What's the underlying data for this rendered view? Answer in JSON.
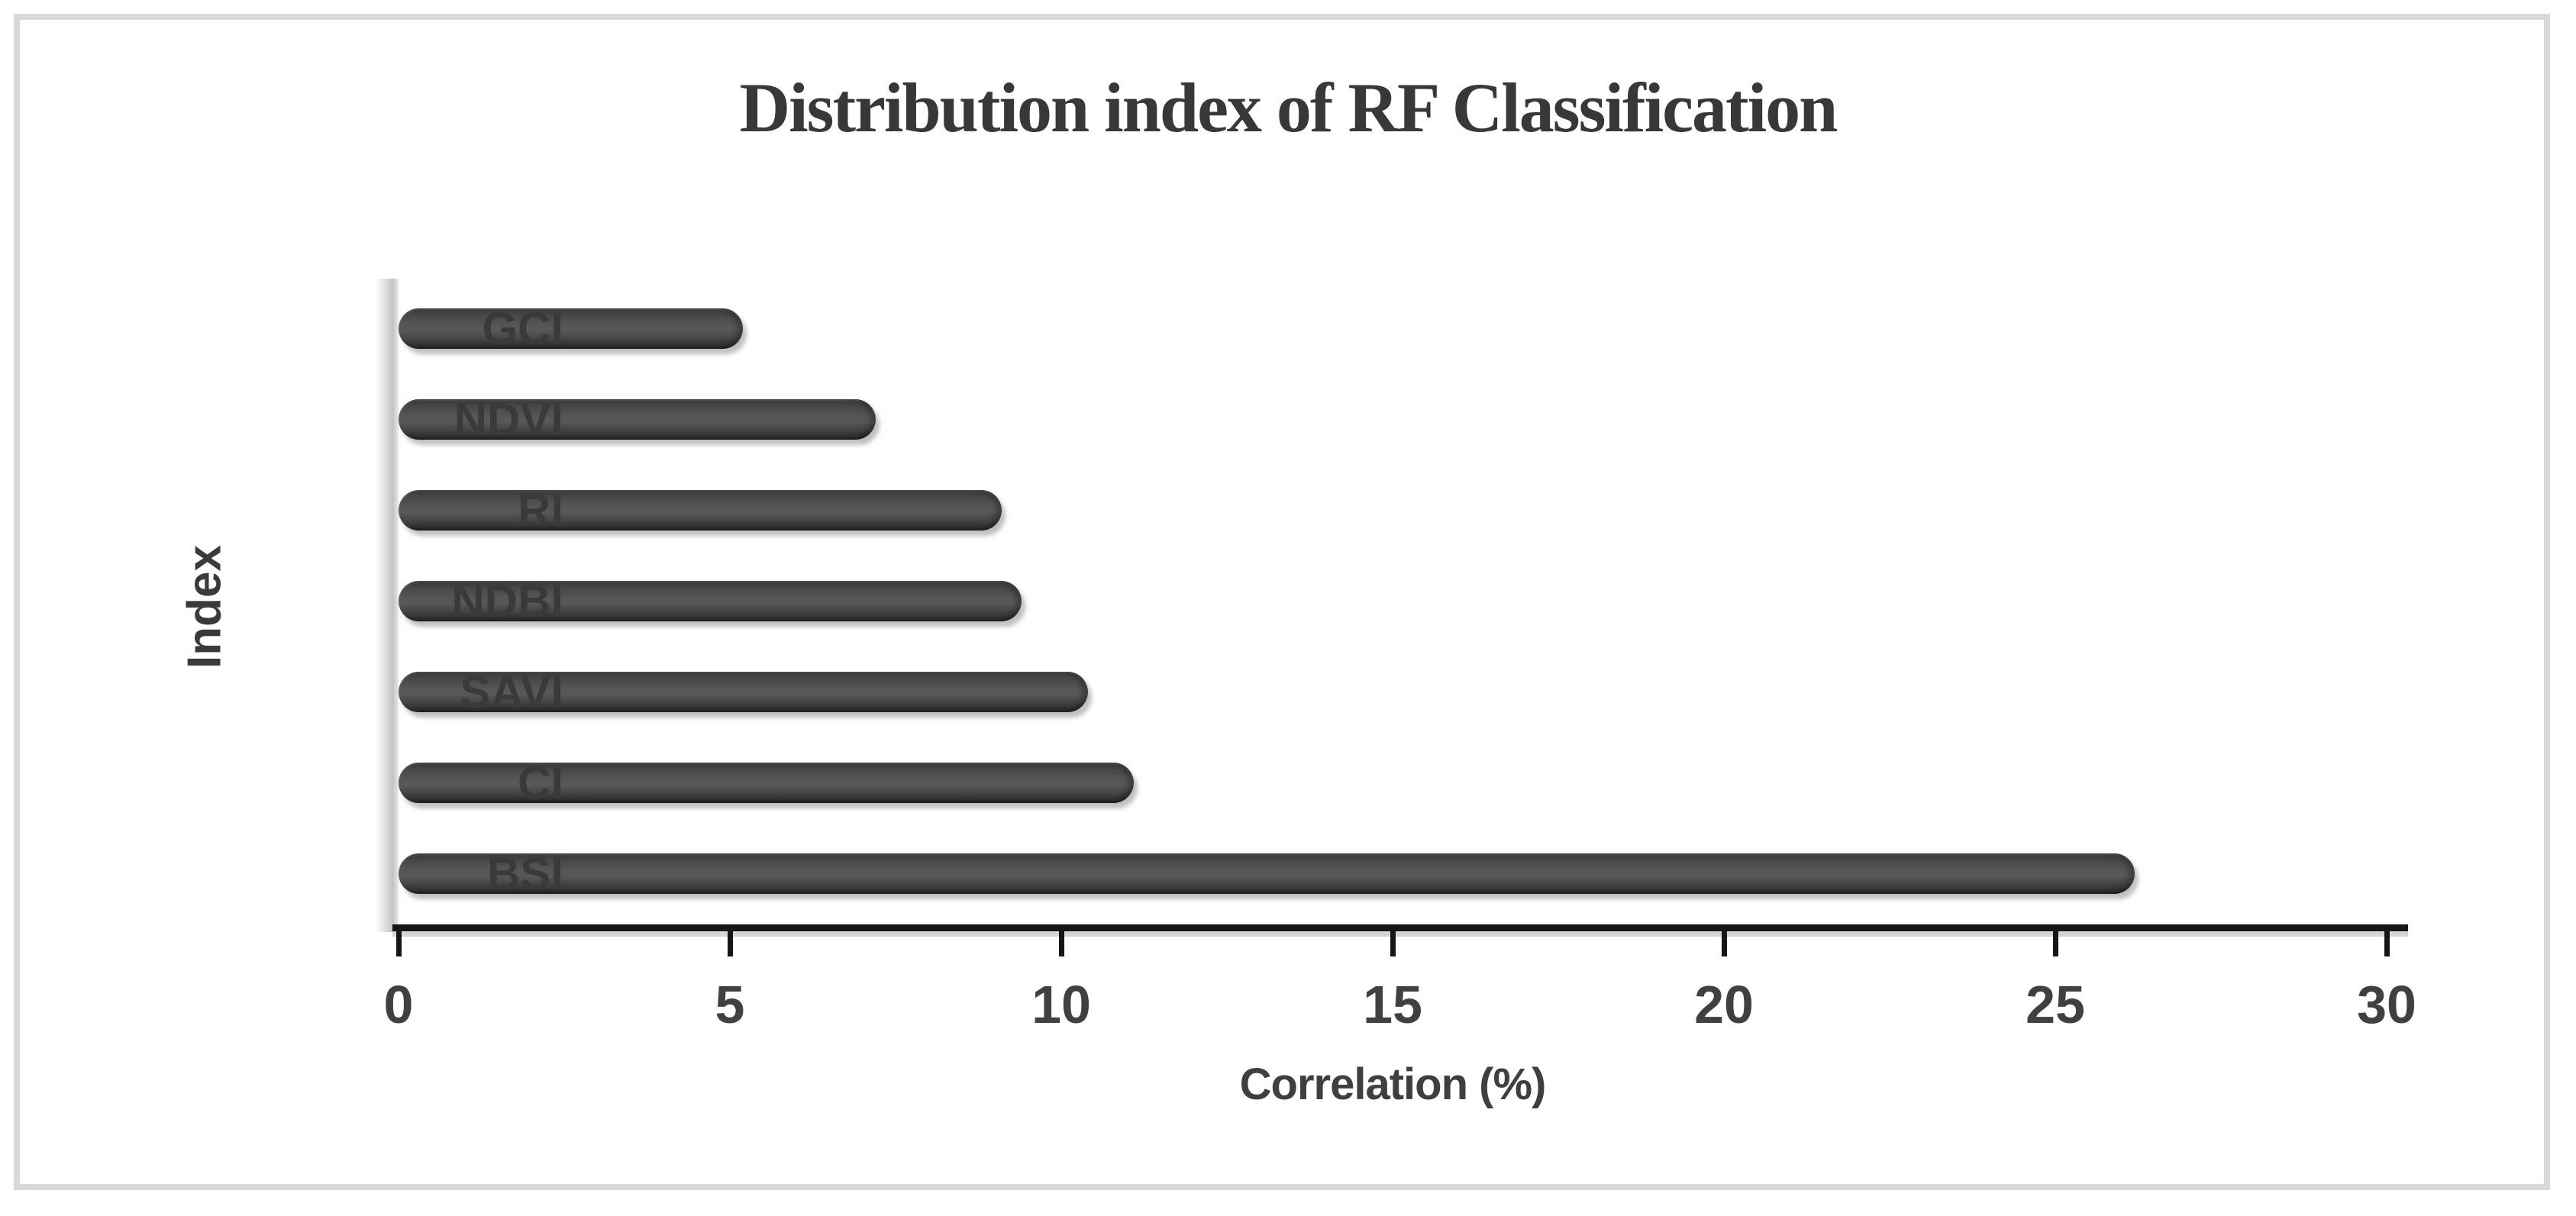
{
  "page": {
    "background": "#ffffff",
    "frame_border_color": "#d9d9d9"
  },
  "chart_data": {
    "type": "bar",
    "orientation": "horizontal",
    "title": "Distribution index of RF Classification",
    "categories": [
      "GCI",
      "NDVI",
      "RI",
      "NDBI",
      "SAVI",
      "CI",
      "BSI"
    ],
    "values": [
      5.2,
      7.2,
      9.1,
      9.4,
      10.4,
      11.1,
      26.2
    ],
    "category_order": "top-to-bottom",
    "xlabel": "Correlation (%)",
    "ylabel": "Index",
    "xlim": [
      0,
      30
    ],
    "xticks": [
      0,
      5,
      10,
      15,
      20,
      25,
      30
    ],
    "grid": false,
    "legend": false,
    "bar_color": "#4a4a4a",
    "bar_style": "rounded-cylinder",
    "axis_color": "#1a1a1a",
    "text_color": "#3f3f3f"
  }
}
